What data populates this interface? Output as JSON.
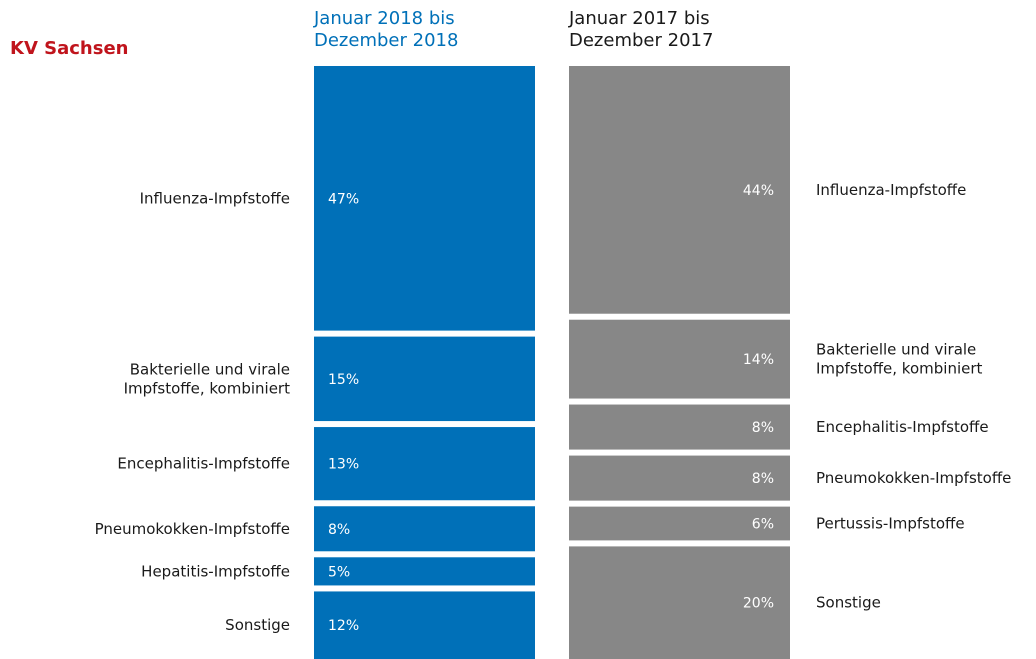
{
  "title": "KV Sachsen",
  "colors": {
    "title": "#c0141c",
    "series_2018": "#0070b8",
    "series_2017": "#878787",
    "text": "#1a1a1a",
    "value_text": "#ffffff"
  },
  "chart_data": {
    "type": "bar",
    "subtype": "stacked-100-percent-columns",
    "title": "KV Sachsen",
    "unit": "%",
    "series": [
      {
        "name_lines": [
          "Januar 2018 bis",
          "Dezember 2018"
        ],
        "segments": [
          {
            "category": "Influenza-Impfstoffe",
            "label_lines": [
              "Influenza-Impfstoffe"
            ],
            "value": 47,
            "value_label": "47%"
          },
          {
            "category": "Bakterielle und virale Impfstoffe, kombiniert",
            "label_lines": [
              "Bakterielle und virale",
              "Impfstoffe, kombiniert"
            ],
            "value": 15,
            "value_label": "15%"
          },
          {
            "category": "Encephalitis-Impfstoffe",
            "label_lines": [
              "Encephalitis-Impfstoffe"
            ],
            "value": 13,
            "value_label": "13%"
          },
          {
            "category": "Pneumokokken-Impfstoffe",
            "label_lines": [
              "Pneumokokken-Impfstoffe"
            ],
            "value": 8,
            "value_label": "8%"
          },
          {
            "category": "Hepatitis-Impfstoffe",
            "label_lines": [
              "Hepatitis-Impfstoffe"
            ],
            "value": 5,
            "value_label": "5%"
          },
          {
            "category": "Sonstige",
            "label_lines": [
              "Sonstige"
            ],
            "value": 12,
            "value_label": "12%"
          }
        ]
      },
      {
        "name_lines": [
          "Januar 2017 bis",
          "Dezember 2017"
        ],
        "segments": [
          {
            "category": "Influenza-Impfstoffe",
            "label_lines": [
              "Influenza-Impfstoffe"
            ],
            "value": 44,
            "value_label": "44%"
          },
          {
            "category": "Bakterielle und virale Impfstoffe, kombiniert",
            "label_lines": [
              "Bakterielle und virale",
              "Impfstoffe, kombiniert"
            ],
            "value": 14,
            "value_label": "14%"
          },
          {
            "category": "Encephalitis-Impfstoffe",
            "label_lines": [
              "Encephalitis-Impfstoffe"
            ],
            "value": 8,
            "value_label": "8%"
          },
          {
            "category": "Pneumokokken-Impfstoffe",
            "label_lines": [
              "Pneumokokken-Impfstoffe"
            ],
            "value": 8,
            "value_label": "8%"
          },
          {
            "category": "Pertussis-Impfstoffe",
            "label_lines": [
              "Pertussis-Impfstoffe"
            ],
            "value": 6,
            "value_label": "6%"
          },
          {
            "category": "Sonstige",
            "label_lines": [
              "Sonstige"
            ],
            "value": 20,
            "value_label": "20%"
          }
        ]
      }
    ]
  }
}
